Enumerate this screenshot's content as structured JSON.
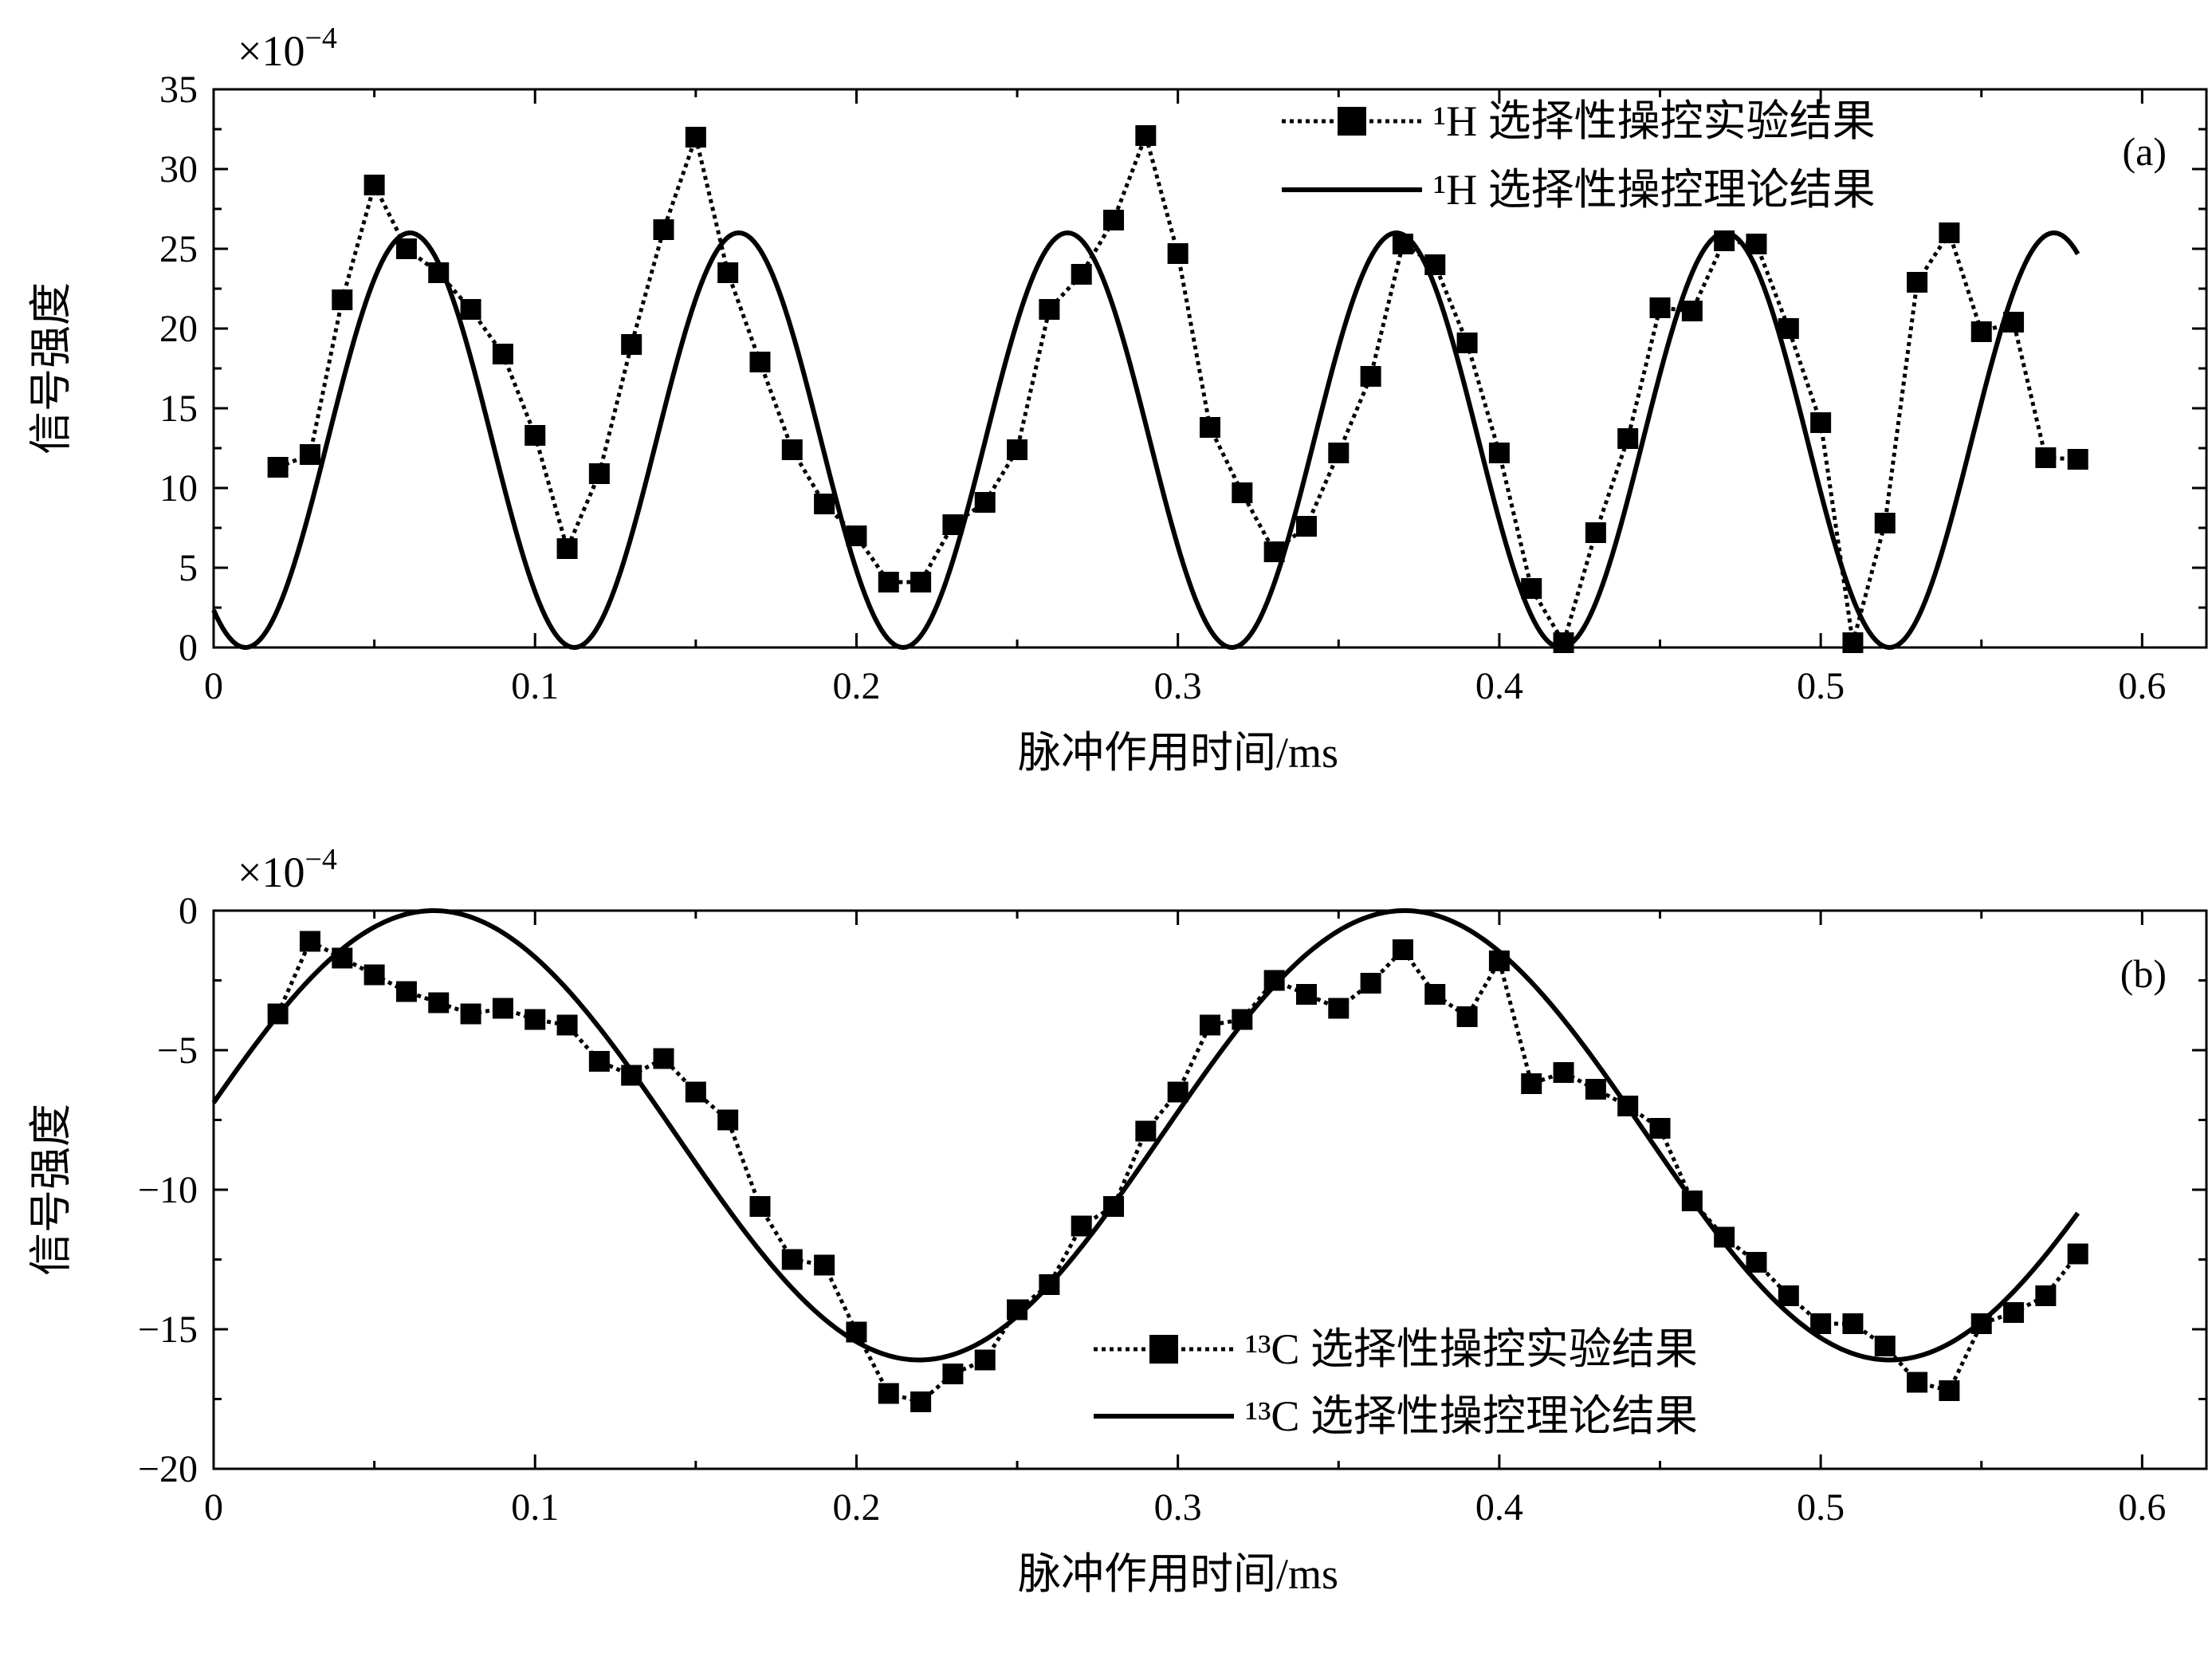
{
  "chart_data": [
    {
      "type": "line",
      "panel_label": "(a)",
      "multiplier_label": "×10",
      "multiplier_exp": "−4",
      "xlabel": "脉冲作用时间/ms",
      "ylabel": "信号强度",
      "xlim": [
        0,
        0.62
      ],
      "ylim": [
        0,
        35
      ],
      "xticks": [
        0,
        0.1,
        0.2,
        0.3,
        0.4,
        0.5,
        0.6
      ],
      "xtick_labels": [
        "0",
        "0.1",
        "0.2",
        "0.3",
        "0.4",
        "0.5",
        "0.6"
      ],
      "yticks": [
        0,
        5,
        10,
        15,
        20,
        25,
        30,
        35
      ],
      "ytick_labels": [
        "0",
        "5",
        "10",
        "15",
        "20",
        "25",
        "30",
        "35"
      ],
      "legend_position": "top-right",
      "series": [
        {
          "name": "¹H 选择性操控实验结果",
          "style": "dotted-square",
          "x": [
            0.02,
            0.03,
            0.04,
            0.05,
            0.06,
            0.07,
            0.08,
            0.09,
            0.1,
            0.11,
            0.12,
            0.13,
            0.14,
            0.15,
            0.16,
            0.17,
            0.18,
            0.19,
            0.2,
            0.21,
            0.22,
            0.23,
            0.24,
            0.25,
            0.26,
            0.27,
            0.28,
            0.29,
            0.3,
            0.31,
            0.32,
            0.33,
            0.34,
            0.35,
            0.36,
            0.37,
            0.38,
            0.39,
            0.4,
            0.41,
            0.42,
            0.43,
            0.44,
            0.45,
            0.46,
            0.47,
            0.48,
            0.49,
            0.5,
            0.51,
            0.52,
            0.53,
            0.54,
            0.55,
            0.56,
            0.57,
            0.58
          ],
          "y": [
            11.3,
            12.1,
            21.8,
            29.0,
            25.0,
            23.5,
            21.2,
            18.4,
            13.3,
            6.2,
            10.9,
            19.0,
            26.2,
            32.0,
            23.5,
            17.9,
            12.4,
            9.0,
            7.0,
            4.1,
            4.1,
            7.7,
            9.1,
            12.4,
            21.2,
            23.4,
            26.8,
            32.1,
            24.7,
            13.8,
            9.7,
            6.0,
            7.6,
            12.2,
            17.0,
            25.3,
            24.0,
            19.1,
            12.2,
            3.7,
            0.3,
            7.2,
            13.1,
            21.3,
            21.1,
            25.5,
            25.3,
            20.0,
            14.1,
            0.3,
            7.8,
            22.9,
            26.0,
            19.8,
            20.4,
            11.9,
            11.8
          ]
        },
        {
          "name": "¹H 选择性操控理论结果",
          "style": "solid",
          "function": "13 + 13*sin(2*pi*(t - 0.0355)/0.1023)",
          "x_range": [
            0,
            0.58
          ]
        }
      ]
    },
    {
      "type": "line",
      "panel_label": "(b)",
      "multiplier_label": "×10",
      "multiplier_exp": "−4",
      "xlabel": "脉冲作用时间/ms",
      "ylabel": "信号强度",
      "xlim": [
        0,
        0.62
      ],
      "ylim": [
        -20,
        0
      ],
      "xticks": [
        0,
        0.1,
        0.2,
        0.3,
        0.4,
        0.5,
        0.6
      ],
      "xtick_labels": [
        "0",
        "0.1",
        "0.2",
        "0.3",
        "0.4",
        "0.5",
        "0.6"
      ],
      "yticks": [
        -20,
        -15,
        -10,
        -5,
        0
      ],
      "ytick_labels": [
        "−20",
        "−15",
        "−10",
        "−5",
        "0"
      ],
      "legend_position": "bottom-center",
      "series": [
        {
          "name": "¹³C 选择性操控实验结果",
          "style": "dotted-square",
          "x": [
            0.02,
            0.03,
            0.04,
            0.05,
            0.06,
            0.07,
            0.08,
            0.09,
            0.1,
            0.11,
            0.12,
            0.13,
            0.14,
            0.15,
            0.16,
            0.17,
            0.18,
            0.19,
            0.2,
            0.21,
            0.22,
            0.23,
            0.24,
            0.25,
            0.26,
            0.27,
            0.28,
            0.29,
            0.3,
            0.31,
            0.32,
            0.33,
            0.34,
            0.35,
            0.36,
            0.37,
            0.38,
            0.39,
            0.4,
            0.41,
            0.42,
            0.43,
            0.44,
            0.45,
            0.46,
            0.47,
            0.48,
            0.49,
            0.5,
            0.51,
            0.52,
            0.53,
            0.54,
            0.55,
            0.56,
            0.57,
            0.58
          ],
          "y": [
            -3.7,
            -1.1,
            -1.7,
            -2.3,
            -2.9,
            -3.3,
            -3.7,
            -3.5,
            -3.9,
            -4.1,
            -5.4,
            -5.9,
            -5.3,
            -6.5,
            -7.5,
            -10.6,
            -12.5,
            -12.7,
            -15.1,
            -17.3,
            -17.6,
            -16.6,
            -16.1,
            -14.3,
            -13.4,
            -11.3,
            -10.6,
            -7.9,
            -6.5,
            -4.1,
            -3.9,
            -2.5,
            -3.0,
            -3.5,
            -2.6,
            -1.4,
            -3.0,
            -3.8,
            -1.8,
            -6.2,
            -5.8,
            -6.4,
            -7.0,
            -7.8,
            -10.4,
            -11.7,
            -12.6,
            -13.8,
            -14.8,
            -14.8,
            -15.6,
            -16.9,
            -17.2,
            -14.8,
            -14.4,
            -13.8,
            -12.3
          ]
        },
        {
          "name": "¹³C 选择性操控理论结果",
          "style": "solid",
          "function": "-8.05 + 8.05*cos(2*pi*(t - 0.0685)/0.302)",
          "x_range": [
            0,
            0.58
          ]
        }
      ]
    }
  ]
}
